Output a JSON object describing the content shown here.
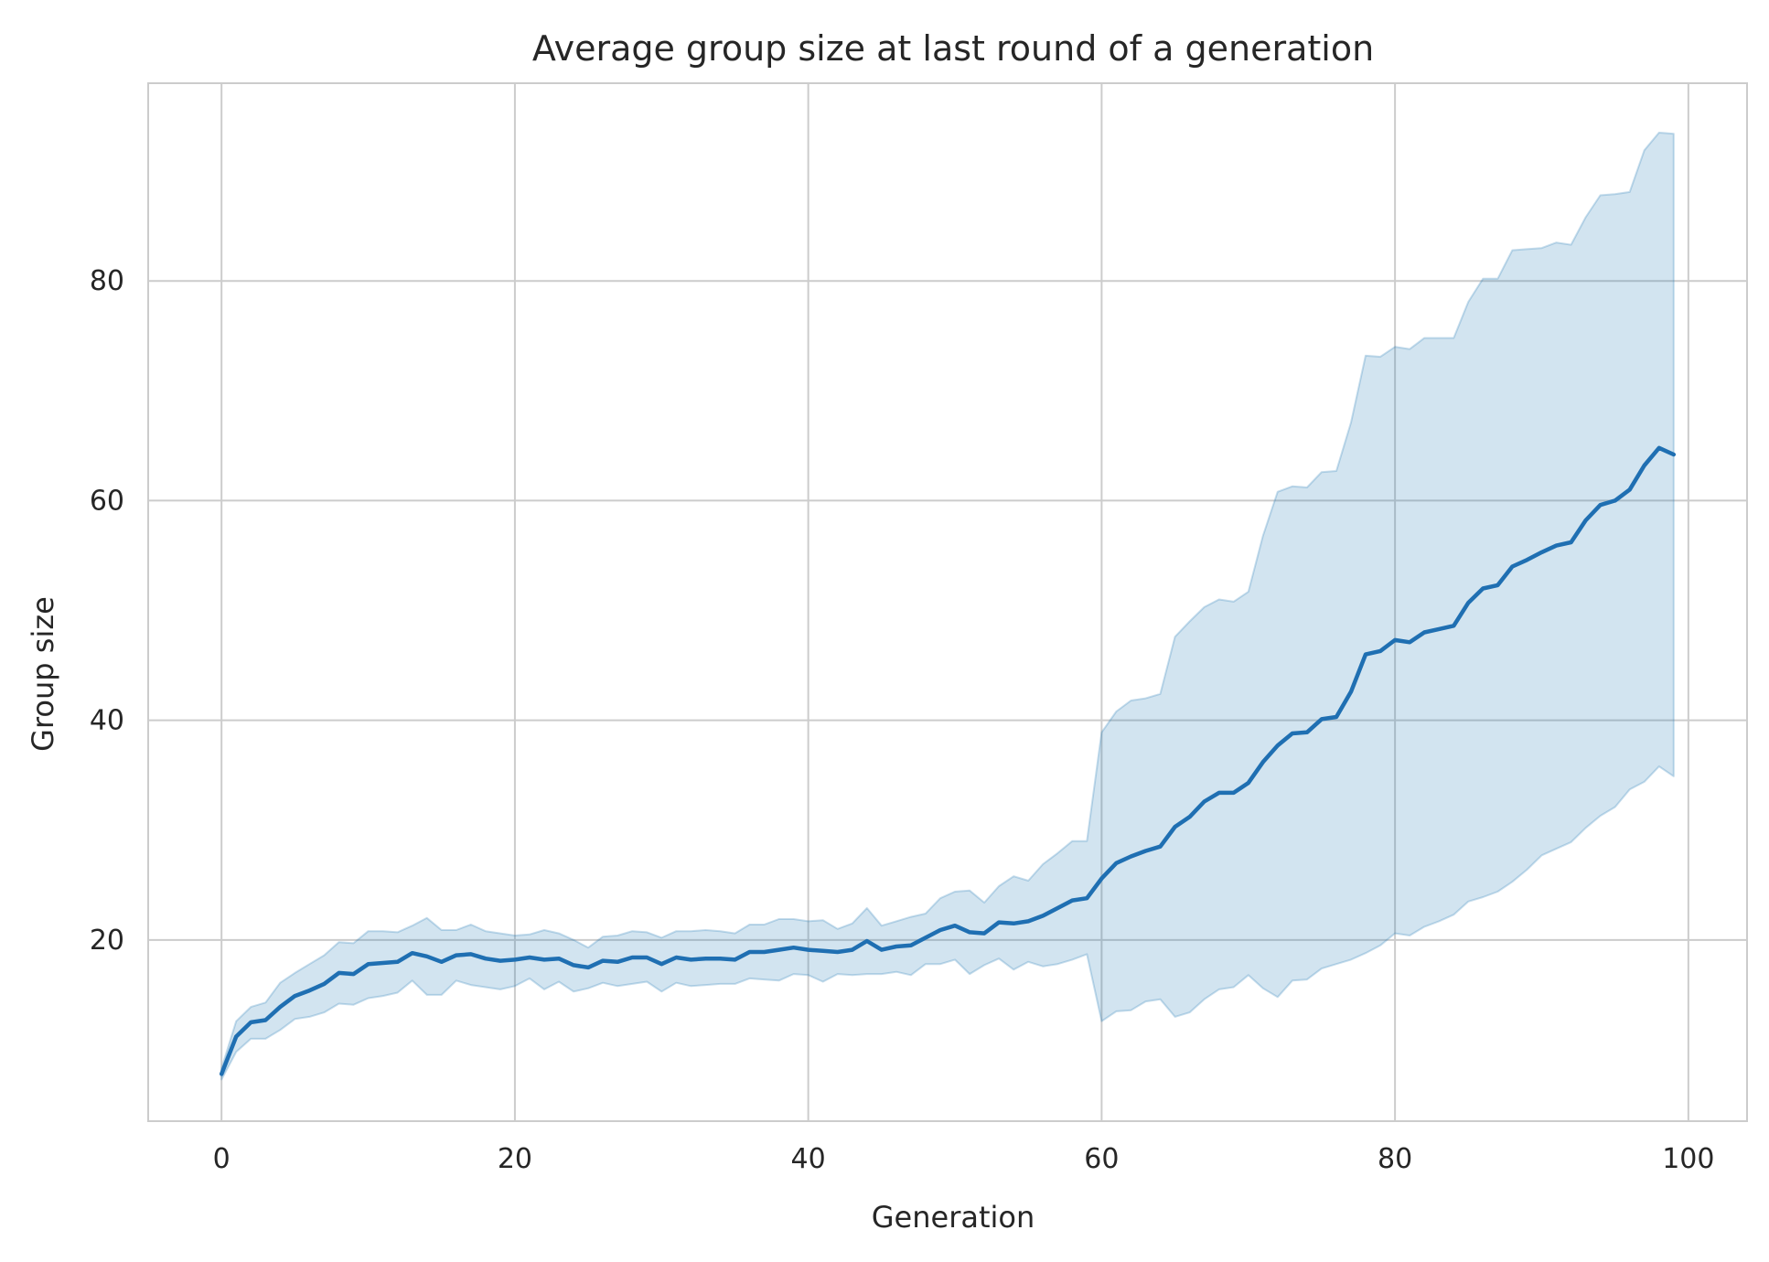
{
  "chart_data": {
    "type": "line",
    "title": "Average group size at last round of a generation",
    "xlabel": "Generation",
    "ylabel": "Group size",
    "xlim": [
      -5,
      104
    ],
    "ylim": [
      3.5,
      98
    ],
    "xticks": [
      0,
      20,
      40,
      60,
      80,
      100
    ],
    "yticks": [
      20,
      40,
      60,
      80
    ],
    "xtick_labels": [
      "0",
      "20",
      "40",
      "60",
      "80",
      "100"
    ],
    "ytick_labels": [
      "20",
      "40",
      "60",
      "80"
    ],
    "grid": true,
    "colors": {
      "line": "#1f6fb2",
      "band": "#1f77b4",
      "grid": "#cccccc",
      "frame": "#cccccc",
      "background": "#ffffff"
    },
    "series": [
      {
        "x": [
          0,
          1,
          2,
          3,
          4,
          5,
          6,
          7,
          8,
          9,
          10,
          11,
          12,
          13,
          14,
          15,
          16,
          17,
          18,
          19,
          20,
          21,
          22,
          23,
          24,
          25,
          26,
          27,
          28,
          29,
          30,
          31,
          32,
          33,
          34,
          35,
          36,
          37,
          38,
          39,
          40,
          41,
          42,
          43,
          44,
          45,
          46,
          47,
          48,
          49,
          50,
          51,
          52,
          53,
          54,
          55,
          56,
          57,
          58,
          59,
          60,
          61,
          62,
          63,
          64,
          65,
          66,
          67,
          68,
          69,
          70,
          71,
          72,
          73,
          74,
          75,
          76,
          77,
          78,
          79,
          80,
          81,
          82,
          83,
          84,
          85,
          86,
          87,
          88,
          89,
          90,
          91,
          92,
          93,
          94,
          95,
          96,
          97,
          98,
          99
        ],
        "mean": [
          7.8,
          11.2,
          12.5,
          12.7,
          13.9,
          14.9,
          15.4,
          16.0,
          17.0,
          16.9,
          17.8,
          17.9,
          18.0,
          18.8,
          18.5,
          18.0,
          18.6,
          18.7,
          18.3,
          18.1,
          18.2,
          18.4,
          18.2,
          18.3,
          17.7,
          17.5,
          18.1,
          18.0,
          18.4,
          18.4,
          17.8,
          18.4,
          18.2,
          18.3,
          18.3,
          18.2,
          18.9,
          18.9,
          19.1,
          19.3,
          19.1,
          19.0,
          18.9,
          19.1,
          19.9,
          19.1,
          19.4,
          19.5,
          20.2,
          20.9,
          21.3,
          20.7,
          20.6,
          21.6,
          21.5,
          21.7,
          22.2,
          22.9,
          23.6,
          23.8,
          25.6,
          27.0,
          27.6,
          28.1,
          28.5,
          30.3,
          31.2,
          32.6,
          33.4,
          33.4,
          34.3,
          36.2,
          37.7,
          38.8,
          38.9,
          40.1,
          40.3,
          42.6,
          46.0,
          46.3,
          47.3,
          47.1,
          48.0,
          48.3,
          48.6,
          50.7,
          52.0,
          52.3,
          54.0,
          54.6,
          55.3,
          55.9,
          56.2,
          58.2,
          59.6,
          60.0,
          61.0,
          63.2,
          64.8,
          64.2
        ],
        "lower": [
          7.3,
          9.8,
          11.0,
          11.0,
          11.8,
          12.8,
          13.0,
          13.4,
          14.2,
          14.1,
          14.7,
          14.9,
          15.2,
          16.3,
          15.0,
          15.0,
          16.3,
          15.9,
          15.7,
          15.5,
          15.8,
          16.5,
          15.5,
          16.2,
          15.3,
          15.6,
          16.1,
          15.8,
          16.0,
          16.2,
          15.3,
          16.1,
          15.8,
          15.9,
          16.0,
          16.0,
          16.5,
          16.4,
          16.3,
          16.9,
          16.8,
          16.2,
          16.9,
          16.8,
          16.9,
          16.9,
          17.1,
          16.8,
          17.8,
          17.8,
          18.2,
          16.9,
          17.7,
          18.3,
          17.3,
          18.0,
          17.6,
          17.8,
          18.2,
          18.7,
          12.6,
          13.5,
          13.6,
          14.4,
          14.6,
          13.0,
          13.4,
          14.6,
          15.5,
          15.7,
          16.8,
          15.6,
          14.8,
          16.3,
          16.4,
          17.4,
          17.8,
          18.2,
          18.8,
          19.5,
          20.6,
          20.4,
          21.2,
          21.7,
          22.3,
          23.5,
          23.9,
          24.4,
          25.3,
          26.4,
          27.7,
          28.3,
          28.9,
          30.2,
          31.3,
          32.1,
          33.7,
          34.4,
          35.8,
          34.9
        ],
        "upper": [
          8.3,
          12.6,
          13.9,
          14.3,
          16.1,
          17.0,
          17.8,
          18.6,
          19.8,
          19.7,
          20.8,
          20.8,
          20.7,
          21.3,
          22.0,
          20.9,
          20.9,
          21.4,
          20.8,
          20.6,
          20.4,
          20.5,
          20.9,
          20.6,
          20.0,
          19.3,
          20.3,
          20.4,
          20.8,
          20.7,
          20.2,
          20.8,
          20.8,
          20.9,
          20.8,
          20.6,
          21.4,
          21.4,
          21.9,
          21.9,
          21.7,
          21.8,
          21.0,
          21.5,
          22.9,
          21.3,
          21.7,
          22.1,
          22.4,
          23.8,
          24.4,
          24.5,
          23.4,
          24.9,
          25.8,
          25.4,
          26.9,
          27.9,
          29.0,
          29.0,
          38.9,
          40.8,
          41.8,
          42.0,
          42.4,
          47.6,
          49.0,
          50.3,
          51.0,
          50.8,
          51.7,
          56.8,
          60.8,
          61.3,
          61.2,
          62.6,
          62.7,
          67.1,
          73.2,
          73.1,
          74.0,
          73.8,
          74.8,
          74.8,
          74.8,
          78.1,
          80.2,
          80.2,
          82.8,
          82.9,
          83.0,
          83.5,
          83.3,
          85.8,
          87.8,
          87.9,
          88.1,
          91.9,
          93.5,
          93.4
        ]
      }
    ]
  }
}
